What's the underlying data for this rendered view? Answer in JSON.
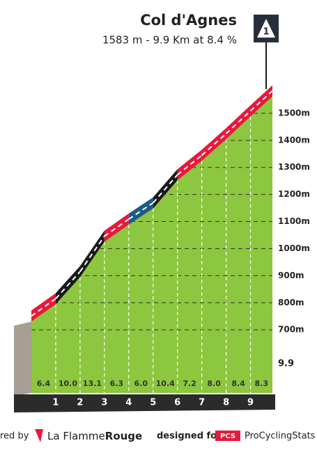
{
  "chart_data": {
    "type": "profile",
    "title": "Col d'Agnes",
    "subtitle": "1583 m - 9.9 Km at 8.4 %",
    "badge": "1",
    "x": [
      0,
      1,
      2,
      3,
      4,
      5,
      6,
      7,
      8,
      9,
      9.9
    ],
    "values": [
      751,
      815,
      915,
      1046,
      1109,
      1169,
      1273,
      1345,
      1425,
      1509,
      1583
    ],
    "xlim": [
      0,
      9.9
    ],
    "xticks": [
      1,
      2,
      3,
      4,
      5,
      6,
      7,
      8,
      9
    ],
    "ylim": [
      590,
      1600
    ],
    "yticks": [
      {
        "value": 700,
        "label": "700m"
      },
      {
        "value": 800,
        "label": "800m"
      },
      {
        "value": 900,
        "label": "900m"
      },
      {
        "value": 1000,
        "label": "1000m"
      },
      {
        "value": 1100,
        "label": "1100m"
      },
      {
        "value": 1200,
        "label": "1200m"
      },
      {
        "value": 1300,
        "label": "1300m"
      },
      {
        "value": 1400,
        "label": "1400m"
      },
      {
        "value": 1500,
        "label": "1500m"
      }
    ],
    "gradients": {
      "values": [
        6.4,
        10,
        13.1,
        6.3,
        6,
        10.4,
        7.2,
        8,
        8.4,
        8.3
      ],
      "value_labels": [
        "6.4",
        "10.0",
        "13.1",
        "6.3",
        "6.0",
        "10.4",
        "7.2",
        "8.0",
        "8.4",
        "8.3"
      ],
      "colors": [
        "#e8193c",
        "#1a1a1a",
        "#1a1a1a",
        "#e8193c",
        "#1d5b85",
        "#1a1a1a",
        "#e8193c",
        "#e8193c",
        "#e8193c",
        "#e8193c"
      ]
    },
    "area_color": "#8dc63f",
    "grid": true
  },
  "footer": {
    "powered": "red by",
    "brand1": "La Flamme",
    "brand2": "Rouge",
    "designed": "designed for",
    "pcs": "PCS",
    "brand3": "ProCyclingStats"
  }
}
